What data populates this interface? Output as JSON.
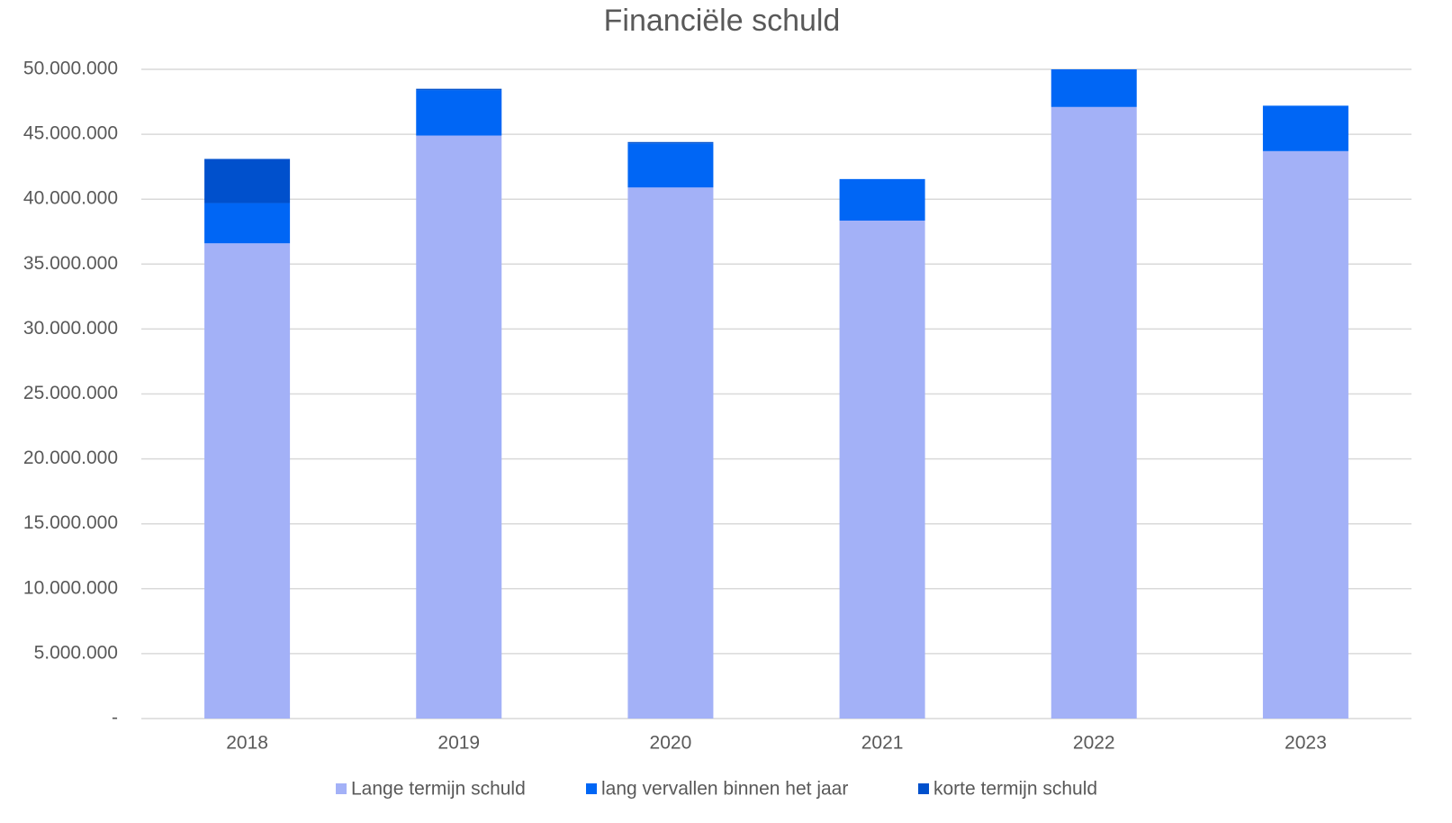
{
  "chart_data": {
    "type": "bar",
    "stacked": true,
    "title": "Financiële schuld",
    "categories": [
      "2018",
      "2019",
      "2020",
      "2021",
      "2022",
      "2023"
    ],
    "series": [
      {
        "name": "Lange termijn schuld",
        "color": "#a3b1f7",
        "values": [
          36600000,
          44900000,
          40900000,
          38350000,
          47100000,
          43700000
        ]
      },
      {
        "name": "lang vervallen binnen het jaar",
        "color": "#0066f5",
        "values": [
          3100000,
          3500000,
          3400000,
          3200000,
          2900000,
          3500000
        ]
      },
      {
        "name": "korte termijn schuld",
        "color": "#0050cc",
        "values": [
          3400000,
          100000,
          100000,
          0,
          0,
          0
        ]
      }
    ],
    "ylim": [
      0,
      50000000
    ],
    "yticks": [
      {
        "value": 0,
        "label": "-"
      },
      {
        "value": 5000000,
        "label": "5.000.000"
      },
      {
        "value": 10000000,
        "label": "10.000.000"
      },
      {
        "value": 15000000,
        "label": "15.000.000"
      },
      {
        "value": 20000000,
        "label": "20.000.000"
      },
      {
        "value": 25000000,
        "label": "25.000.000"
      },
      {
        "value": 30000000,
        "label": "30.000.000"
      },
      {
        "value": 35000000,
        "label": "35.000.000"
      },
      {
        "value": 40000000,
        "label": "40.000.000"
      },
      {
        "value": 45000000,
        "label": "45.000.000"
      },
      {
        "value": 50000000,
        "label": "50.000.000"
      }
    ],
    "grid": true,
    "legend": "bottom"
  }
}
